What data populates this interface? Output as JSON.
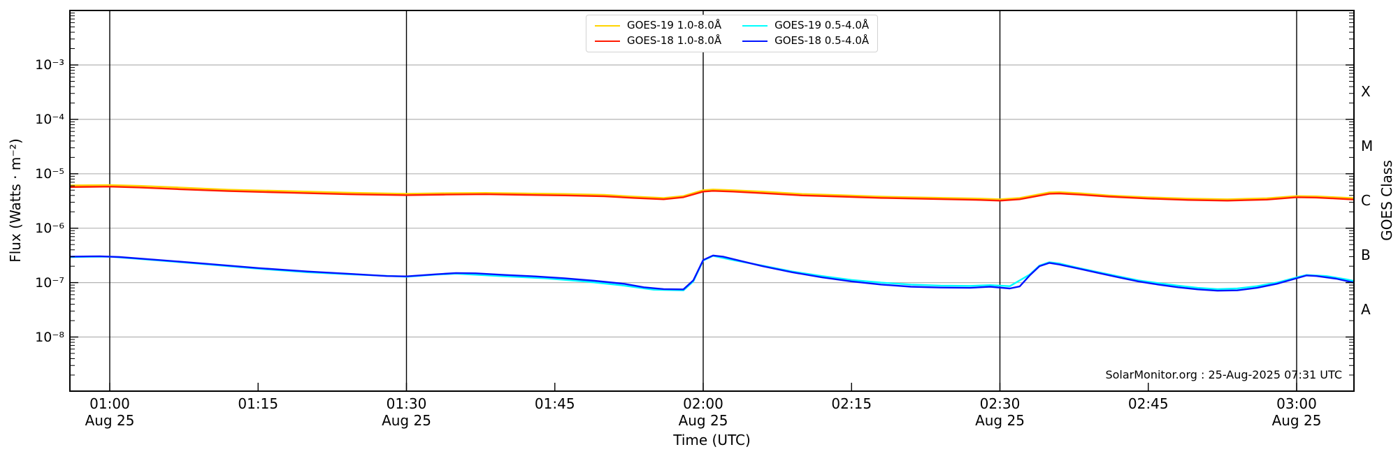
{
  "figure": {
    "xlabel": "Time (UTC)",
    "ylabel_left": "Flux (Watts · m⁻²)",
    "ylabel_right": "GOES Class",
    "annotation": "SolarMonitor.org : 25-Aug-2025 07:31 UTC"
  },
  "legend": {
    "items": [
      {
        "label": "GOES-19 1.0-8.0Å",
        "color": "#ffd400"
      },
      {
        "label": "GOES-19 0.5-4.0Å",
        "color": "#00ffff"
      },
      {
        "label": "GOES-18 1.0-8.0Å",
        "color": "#ff1a00"
      },
      {
        "label": "GOES-18 0.5-4.0Å",
        "color": "#0013ff"
      }
    ]
  },
  "chart_data": {
    "type": "line",
    "title": "",
    "xlabel": "Time (UTC)",
    "ylabel": "Flux (Watts · m⁻²)",
    "ylabel_right": "GOES Class",
    "x_unit": "minutes after 00:00 UTC, 25-Aug-2025",
    "x_range_minutes": [
      55.97,
      185.8
    ],
    "y_scale": "log",
    "ylim": [
      1e-09,
      0.01
    ],
    "grid": {
      "horizontal": "gray at each decade 1e-3..1e-8",
      "vertical": "black at each half hour"
    },
    "legend_position": "top center, 2 columns",
    "xticks": [
      {
        "t": 60,
        "label": "01:00",
        "sub": "Aug 25",
        "grid": true
      },
      {
        "t": 75,
        "label": "01:15",
        "sub": "",
        "grid": false
      },
      {
        "t": 90,
        "label": "01:30",
        "sub": "Aug 25",
        "grid": true
      },
      {
        "t": 105,
        "label": "01:45",
        "sub": "",
        "grid": false
      },
      {
        "t": 120,
        "label": "02:00",
        "sub": "Aug 25",
        "grid": true
      },
      {
        "t": 135,
        "label": "02:15",
        "sub": "",
        "grid": false
      },
      {
        "t": 150,
        "label": "02:30",
        "sub": "Aug 25",
        "grid": true
      },
      {
        "t": 165,
        "label": "02:45",
        "sub": "",
        "grid": false
      },
      {
        "t": 180,
        "label": "03:00",
        "sub": "Aug 25",
        "grid": true
      }
    ],
    "yticks": [
      {
        "exp": -3,
        "label": "10⁻³"
      },
      {
        "exp": -4,
        "label": "10⁻⁴"
      },
      {
        "exp": -5,
        "label": "10⁻⁵"
      },
      {
        "exp": -6,
        "label": "10⁻⁶"
      },
      {
        "exp": -7,
        "label": "10⁻⁷"
      },
      {
        "exp": -8,
        "label": "10⁻⁸"
      }
    ],
    "right_axis_classes": [
      {
        "label": "X",
        "exp": -3.5
      },
      {
        "label": "M",
        "exp": -4.5
      },
      {
        "label": "C",
        "exp": -5.5
      },
      {
        "label": "B",
        "exp": -6.5
      },
      {
        "label": "A",
        "exp": -7.5
      }
    ],
    "series": [
      {
        "name": "GOES-19 1.0-8.0Å",
        "color": "#ffd400",
        "width": 2.4,
        "points": [
          [
            56,
            6.1e-06
          ],
          [
            58,
            6.15e-06
          ],
          [
            60,
            6.2e-06
          ],
          [
            63,
            6e-06
          ],
          [
            67,
            5.6e-06
          ],
          [
            72,
            5.1e-06
          ],
          [
            78,
            4.8e-06
          ],
          [
            84,
            4.5e-06
          ],
          [
            90,
            4.3e-06
          ],
          [
            94,
            4.4e-06
          ],
          [
            98,
            4.45e-06
          ],
          [
            102,
            4.35e-06
          ],
          [
            106,
            4.25e-06
          ],
          [
            110,
            4.1e-06
          ],
          [
            113,
            3.8e-06
          ],
          [
            116,
            3.6e-06
          ],
          [
            118,
            3.9e-06
          ],
          [
            120,
            5e-06
          ],
          [
            121,
            5.15e-06
          ],
          [
            123,
            5e-06
          ],
          [
            126,
            4.7e-06
          ],
          [
            130,
            4.25e-06
          ],
          [
            134,
            4.05e-06
          ],
          [
            138,
            3.8e-06
          ],
          [
            143,
            3.65e-06
          ],
          [
            148,
            3.5e-06
          ],
          [
            150,
            3.4e-06
          ],
          [
            152,
            3.6e-06
          ],
          [
            155,
            4.55e-06
          ],
          [
            156,
            4.6e-06
          ],
          [
            158,
            4.4e-06
          ],
          [
            161,
            4e-06
          ],
          [
            165,
            3.7e-06
          ],
          [
            169,
            3.5e-06
          ],
          [
            173,
            3.4e-06
          ],
          [
            177,
            3.55e-06
          ],
          [
            180,
            3.9e-06
          ],
          [
            182,
            3.85e-06
          ],
          [
            184,
            3.7e-06
          ],
          [
            186,
            3.55e-06
          ]
        ]
      },
      {
        "name": "GOES-18 1.0-8.0Å",
        "color": "#ff1a00",
        "width": 2.4,
        "points": [
          [
            56,
            5.7e-06
          ],
          [
            58,
            5.75e-06
          ],
          [
            60,
            5.8e-06
          ],
          [
            63,
            5.6e-06
          ],
          [
            67,
            5.2e-06
          ],
          [
            72,
            4.8e-06
          ],
          [
            78,
            4.5e-06
          ],
          [
            84,
            4.2e-06
          ],
          [
            90,
            4.05e-06
          ],
          [
            94,
            4.15e-06
          ],
          [
            98,
            4.2e-06
          ],
          [
            102,
            4.1e-06
          ],
          [
            106,
            4e-06
          ],
          [
            110,
            3.85e-06
          ],
          [
            113,
            3.6e-06
          ],
          [
            116,
            3.4e-06
          ],
          [
            118,
            3.7e-06
          ],
          [
            120,
            4.7e-06
          ],
          [
            121,
            4.85e-06
          ],
          [
            123,
            4.7e-06
          ],
          [
            126,
            4.4e-06
          ],
          [
            130,
            4e-06
          ],
          [
            134,
            3.8e-06
          ],
          [
            138,
            3.6e-06
          ],
          [
            143,
            3.45e-06
          ],
          [
            148,
            3.3e-06
          ],
          [
            150,
            3.2e-06
          ],
          [
            152,
            3.4e-06
          ],
          [
            155,
            4.3e-06
          ],
          [
            156,
            4.35e-06
          ],
          [
            158,
            4.15e-06
          ],
          [
            161,
            3.8e-06
          ],
          [
            165,
            3.5e-06
          ],
          [
            169,
            3.3e-06
          ],
          [
            173,
            3.2e-06
          ],
          [
            177,
            3.35e-06
          ],
          [
            180,
            3.7e-06
          ],
          [
            182,
            3.65e-06
          ],
          [
            184,
            3.5e-06
          ],
          [
            186,
            3.35e-06
          ]
        ]
      },
      {
        "name": "GOES-19 0.5-4.0Å",
        "color": "#00ffff",
        "width": 2.4,
        "points": [
          [
            56,
            2.95e-07
          ],
          [
            60,
            3e-07
          ],
          [
            65,
            2.55e-07
          ],
          [
            70,
            2.15e-07
          ],
          [
            75,
            1.8e-07
          ],
          [
            80,
            1.55e-07
          ],
          [
            85,
            1.4e-07
          ],
          [
            90,
            1.28e-07
          ],
          [
            93,
            1.4e-07
          ],
          [
            95,
            1.46e-07
          ],
          [
            100,
            1.3e-07
          ],
          [
            104,
            1.2e-07
          ],
          [
            108,
            1.05e-07
          ],
          [
            112,
            8.8e-08
          ],
          [
            115,
            7.4e-08
          ],
          [
            118,
            7.2e-08
          ],
          [
            119,
            1.05e-07
          ],
          [
            120,
            2.55e-07
          ],
          [
            121,
            3.1e-07
          ],
          [
            123,
            2.6e-07
          ],
          [
            126,
            2.05e-07
          ],
          [
            129,
            1.6e-07
          ],
          [
            132,
            1.32e-07
          ],
          [
            135,
            1.12e-07
          ],
          [
            138,
            1e-07
          ],
          [
            141,
            9.2e-08
          ],
          [
            144,
            8.8e-08
          ],
          [
            147,
            8.7e-08
          ],
          [
            149,
            9e-08
          ],
          [
            151,
            8.6e-08
          ],
          [
            153,
            1.4e-07
          ],
          [
            154,
            2.05e-07
          ],
          [
            155,
            2.37e-07
          ],
          [
            156,
            2.25e-07
          ],
          [
            158,
            1.85e-07
          ],
          [
            160,
            1.55e-07
          ],
          [
            162,
            1.3e-07
          ],
          [
            164,
            1.1e-07
          ],
          [
            166,
            9.8e-08
          ],
          [
            168,
            8.8e-08
          ],
          [
            170,
            8e-08
          ],
          [
            172,
            7.6e-08
          ],
          [
            174,
            7.8e-08
          ],
          [
            176,
            8.6e-08
          ],
          [
            178,
            1e-07
          ],
          [
            180,
            1.25e-07
          ],
          [
            181,
            1.38e-07
          ],
          [
            183,
            1.32e-07
          ],
          [
            185,
            1.15e-07
          ],
          [
            186,
            1.05e-07
          ]
        ]
      },
      {
        "name": "GOES-18 0.5-4.0Å",
        "color": "#0013ff",
        "width": 2.4,
        "points": [
          [
            56,
            3e-07
          ],
          [
            59,
            3.05e-07
          ],
          [
            61,
            2.95e-07
          ],
          [
            65,
            2.6e-07
          ],
          [
            70,
            2.2e-07
          ],
          [
            75,
            1.85e-07
          ],
          [
            80,
            1.6e-07
          ],
          [
            85,
            1.42e-07
          ],
          [
            88,
            1.32e-07
          ],
          [
            90,
            1.3e-07
          ],
          [
            93,
            1.42e-07
          ],
          [
            95,
            1.5e-07
          ],
          [
            97,
            1.48e-07
          ],
          [
            100,
            1.38e-07
          ],
          [
            103,
            1.3e-07
          ],
          [
            106,
            1.2e-07
          ],
          [
            109,
            1.08e-07
          ],
          [
            112,
            9.5e-08
          ],
          [
            114,
            8.2e-08
          ],
          [
            116,
            7.6e-08
          ],
          [
            118,
            7.5e-08
          ],
          [
            119,
            1.1e-07
          ],
          [
            120,
            2.6e-07
          ],
          [
            121,
            3.15e-07
          ],
          [
            122,
            3e-07
          ],
          [
            124,
            2.45e-07
          ],
          [
            126,
            2e-07
          ],
          [
            129,
            1.55e-07
          ],
          [
            132,
            1.25e-07
          ],
          [
            135,
            1.05e-07
          ],
          [
            138,
            9.2e-08
          ],
          [
            141,
            8.4e-08
          ],
          [
            144,
            8.1e-08
          ],
          [
            147,
            8e-08
          ],
          [
            149,
            8.4e-08
          ],
          [
            151,
            7.8e-08
          ],
          [
            152,
            8.5e-08
          ],
          [
            153,
            1.35e-07
          ],
          [
            154,
            2e-07
          ],
          [
            155,
            2.3e-07
          ],
          [
            156,
            2.15e-07
          ],
          [
            158,
            1.8e-07
          ],
          [
            160,
            1.5e-07
          ],
          [
            162,
            1.25e-07
          ],
          [
            164,
            1.05e-07
          ],
          [
            166,
            9.2e-08
          ],
          [
            168,
            8.2e-08
          ],
          [
            170,
            7.5e-08
          ],
          [
            172,
            7.1e-08
          ],
          [
            174,
            7.2e-08
          ],
          [
            176,
            8e-08
          ],
          [
            178,
            9.5e-08
          ],
          [
            180,
            1.2e-07
          ],
          [
            181,
            1.35e-07
          ],
          [
            182,
            1.32e-07
          ],
          [
            184,
            1.18e-07
          ],
          [
            186,
            9.8e-08
          ]
        ]
      }
    ]
  }
}
